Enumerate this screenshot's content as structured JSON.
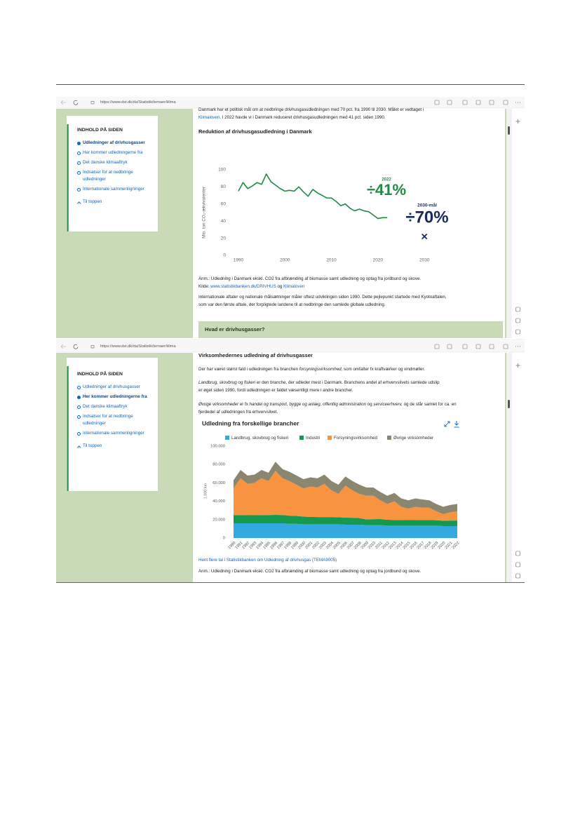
{
  "screenshots": [
    {
      "url": "https://www.dst.dk/da/Statistik/temaer/klima",
      "sidebar": {
        "title": "INDHOLD PÅ SIDEN",
        "items": [
          "Udledninger af drivhusgasser",
          "Her kommer udledningerne fra",
          "Det danske klimaaftryk",
          "Indsatser for at nedbringe udledninger",
          "Internationale sammenligninger"
        ],
        "active": 0,
        "back_to_top": "Til toppen"
      },
      "intro": [
        {
          "text": "Danmark har et politisk mål om at nedbringe drivhusgasudledningen med 70 pct. fra 1990 til 2030. Målet er vedtaget i "
        },
        {
          "text": "Klimaloven",
          "link": true
        },
        {
          "text": ". I 2022 havde vi i Danmark reduceret drivhusgasudledningen med 41 pct. siden 1990."
        }
      ],
      "note": "Anm.: Udledning i Danmark ekskl. CO2 fra afbrænding af biomasse samt udledning og optag fra jordbund og skove.",
      "source": [
        {
          "text": "Kilde: "
        },
        {
          "text": "www.statistikbanken.dk/DRIVHUS",
          "link": true
        },
        {
          "text": " og "
        },
        {
          "text": "Klimaloven",
          "link": true
        }
      ],
      "paragraph": "Internationale aftaler og nationale målsætninger måler oftest udviklingen siden 1990. Dette pejlepunkt startede med Kyotoaftalen, som var den første aftale, der forpligtede landene til at nedbringe den samlede globale udledning.",
      "accordion": "Hvad er drivhusgasser?"
    },
    {
      "url": "https://www.dst.dk/da/Statistik/temaer/klima",
      "sidebar": {
        "title": "INDHOLD PÅ SIDEN",
        "items": [
          "Udledninger af drivhusgasser",
          "Her kommer udledningerne fra",
          "Det danske klimaaftryk",
          "Indsatser for at nedbringe udledninger",
          "Internationale sammenligninger"
        ],
        "active": 1,
        "back_to_top": "Til toppen"
      },
      "heading": "Virksomhedernes udledning af drivhusgasser",
      "paragraphs": [
        [
          {
            "text": "Der har været størst fald i udledningen fra  branchen "
          },
          {
            "text": "forsyningsvirksomhed,",
            "italic": true
          },
          {
            "text": " som omfatter fx kraftværker og vindmøller."
          }
        ],
        [
          {
            "text": "Landbrug, skovbrug og fiskeri",
            "italic": true
          },
          {
            "text": " er den branche, der udleder mest i Danmark. Branchens andel af erhvervslivets samlede udslip er øget siden 1990, fordi udledningen er faldet væsentligt mere i andre brancher."
          }
        ],
        [
          {
            "text": "Øvrige virksomheder",
            "italic": true
          },
          {
            "text": " er fx "
          },
          {
            "text": "handel og transport, bygge og anlæg, offentlig administration",
            "italic": true
          },
          {
            "text": " og "
          },
          {
            "text": "serviceerhverv,",
            "italic": true
          },
          {
            "text": "  og de står samlet for ca. en fjerdedel af udledningen fra erhvervslivet."
          }
        ]
      ],
      "link": "Hent flere tal i Statistikbanken om Udledning af drivhusgas (TEMA9005)",
      "note": "Anm.: Udledning i Danmark ekskl. CO2 fra afbrænding af biomasse samt udledning og optag fra jordbund og skove."
    }
  ],
  "chart_data": [
    {
      "type": "line",
      "title": "Reduktion af drivhusgasudledning i Danmark",
      "y_label": "Mio. ton CO₂-ækvivalenter",
      "x": [
        1990,
        1991,
        1992,
        1993,
        1994,
        1995,
        1996,
        1997,
        1998,
        1999,
        2000,
        2001,
        2002,
        2003,
        2004,
        2005,
        2006,
        2007,
        2008,
        2009,
        2010,
        2011,
        2012,
        2013,
        2014,
        2015,
        2016,
        2017,
        2018,
        2019,
        2020,
        2021,
        2022
      ],
      "values": [
        75,
        85,
        78,
        81,
        85,
        83,
        95,
        86,
        82,
        78,
        75,
        76,
        75,
        80,
        74,
        69,
        77,
        73,
        70,
        67,
        67,
        63,
        58,
        60,
        55,
        52,
        54,
        52,
        51,
        47,
        43,
        44,
        44
      ],
      "color": "#1e8c45",
      "xlim": [
        1987,
        2036
      ],
      "ylim": [
        0,
        100
      ],
      "xticks": [
        1990,
        2000,
        2010,
        2020,
        2030
      ],
      "yticks": [
        0,
        20,
        40,
        60,
        80,
        100
      ],
      "target": {
        "x": 2030,
        "value": 22,
        "color": "#1b2a5e"
      },
      "annotations": [
        {
          "text": "2022",
          "color": "#1e8c45"
        },
        {
          "text": "÷41%",
          "color": "#1e8c45"
        },
        {
          "text": "2030-mål",
          "color": "#1b2a5e"
        },
        {
          "text": "÷70%",
          "color": "#1b2a5e"
        }
      ]
    },
    {
      "type": "area",
      "stacked": true,
      "title": "Udledning fra forskellige brancher",
      "y_label": "1.000 ton",
      "categories": [
        "1990",
        "1991",
        "1992",
        "1993",
        "1994",
        "1995",
        "1996",
        "1997",
        "1998",
        "1999",
        "2000",
        "2001",
        "2002",
        "2003",
        "2004",
        "2005",
        "2006",
        "2007",
        "2008",
        "2009",
        "2010",
        "2011",
        "2012",
        "2013",
        "2014",
        "2015",
        "2016",
        "2017",
        "2018",
        "2019",
        "2020",
        "2021",
        "2022"
      ],
      "series": [
        {
          "name": "Landbrug, skovbrug og fiskeri",
          "color": "#33a9e0",
          "values": [
            16000,
            16000,
            16000,
            16000,
            16000,
            16000,
            16000,
            16000,
            15500,
            15500,
            15000,
            15000,
            15000,
            15000,
            15000,
            15000,
            14500,
            14500,
            14500,
            14000,
            14000,
            14000,
            13500,
            13500,
            13500,
            13500,
            13500,
            13500,
            13500,
            13500,
            13000,
            13000,
            13000
          ]
        },
        {
          "name": "Industri",
          "color": "#15994f",
          "values": [
            9000,
            9000,
            8800,
            8800,
            9000,
            9000,
            9200,
            9000,
            8800,
            8500,
            8300,
            8000,
            7800,
            7800,
            7800,
            7600,
            7600,
            7500,
            7200,
            6200,
            6500,
            6600,
            6300,
            6200,
            6000,
            6000,
            6000,
            6100,
            6100,
            5900,
            5800,
            6000,
            6000
          ]
        },
        {
          "name": "Forsyningsvirksomhed",
          "color": "#f8943f",
          "values": [
            29000,
            40000,
            34200,
            35200,
            40000,
            37000,
            47800,
            40000,
            37700,
            34000,
            30700,
            33000,
            32200,
            36200,
            29200,
            25400,
            34900,
            30000,
            26300,
            25800,
            25500,
            20400,
            17200,
            20300,
            14500,
            12500,
            14500,
            13400,
            13400,
            9600,
            7200,
            9000,
            10000
          ]
        },
        {
          "name": "Øvrige virksomheder",
          "color": "#8b8670",
          "values": [
            9000,
            9000,
            9000,
            9000,
            9000,
            9000,
            10000,
            10000,
            10000,
            10000,
            10000,
            10000,
            10000,
            10000,
            10000,
            10000,
            10000,
            10000,
            10000,
            9000,
            9000,
            9000,
            9000,
            9000,
            9000,
            9000,
            9000,
            9000,
            8000,
            8000,
            8000,
            8000,
            8000
          ]
        }
      ],
      "ylim": [
        0,
        100000
      ],
      "yticks": [
        0,
        {
          "value": 20000,
          "label": "20.000"
        },
        {
          "value": 40000,
          "label": "40.000"
        },
        {
          "value": 60000,
          "label": "60.000"
        },
        {
          "value": 80000,
          "label": "80.000"
        },
        {
          "value": 100000,
          "label": "100.000"
        }
      ]
    }
  ]
}
